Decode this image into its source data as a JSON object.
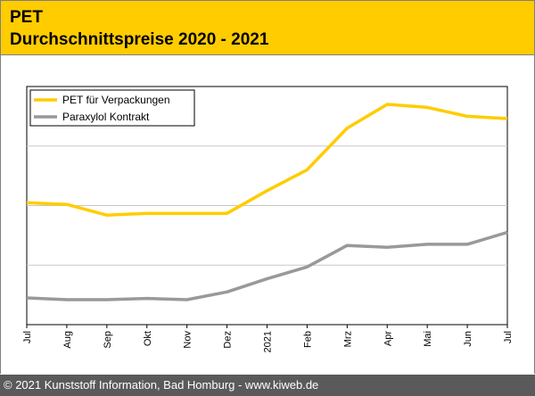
{
  "header": {
    "title": "PET",
    "subtitle": "Durchschnittspreise 2020 - 2021"
  },
  "footer": {
    "text": "© 2021 Kunststoff Information, Bad Homburg - www.kiweb.de"
  },
  "chart_data": {
    "type": "line",
    "title": "PET Durchschnittspreise 2020 - 2021",
    "xlabel": "",
    "ylabel": "",
    "categories": [
      "Jul",
      "Aug",
      "Sep",
      "Okt",
      "Nov",
      "Dez",
      "2021",
      "Feb",
      "Mrz",
      "Apr",
      "Mai",
      "Jun",
      "Jul"
    ],
    "ylim": [
      0,
      4
    ],
    "grid": true,
    "legend_position": "top-left",
    "series": [
      {
        "name": "PET für Verpackungen",
        "color": "#ffcc00",
        "values": [
          2.05,
          2.02,
          1.84,
          1.87,
          1.87,
          1.87,
          2.25,
          2.6,
          3.3,
          3.7,
          3.65,
          3.5,
          3.46
        ]
      },
      {
        "name": "Paraxylol Kontrakt",
        "color": "#999999",
        "values": [
          0.45,
          0.42,
          0.42,
          0.44,
          0.42,
          0.55,
          0.77,
          0.97,
          1.33,
          1.3,
          1.35,
          1.35,
          1.55
        ]
      }
    ]
  }
}
